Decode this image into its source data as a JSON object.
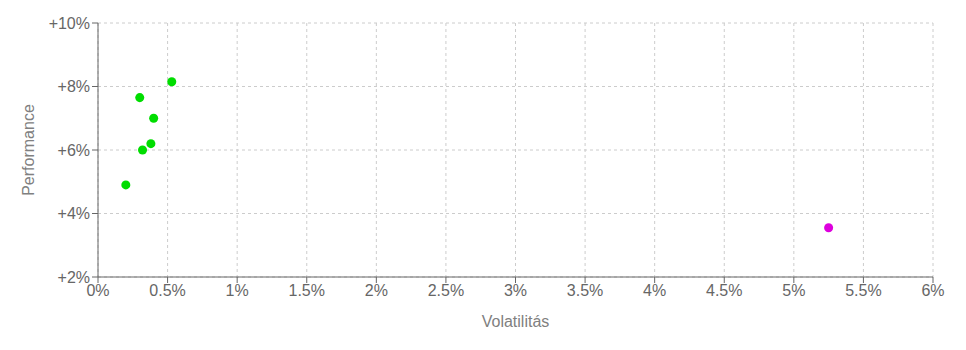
{
  "chart_data": {
    "type": "scatter",
    "xlabel": "Volatilitás",
    "ylabel": "Performance",
    "xlim": [
      0.0,
      0.06
    ],
    "ylim": [
      0.02,
      0.1
    ],
    "xticks": [
      {
        "value": 0.0,
        "label": "0%"
      },
      {
        "value": 0.005,
        "label": "0.5%"
      },
      {
        "value": 0.01,
        "label": "1%"
      },
      {
        "value": 0.015,
        "label": "1.5%"
      },
      {
        "value": 0.02,
        "label": "2%"
      },
      {
        "value": 0.025,
        "label": "2.5%"
      },
      {
        "value": 0.03,
        "label": "3%"
      },
      {
        "value": 0.035,
        "label": "3.5%"
      },
      {
        "value": 0.04,
        "label": "4%"
      },
      {
        "value": 0.045,
        "label": "4.5%"
      },
      {
        "value": 0.05,
        "label": "5%"
      },
      {
        "value": 0.055,
        "label": "5.5%"
      },
      {
        "value": 0.06,
        "label": "6%"
      }
    ],
    "yticks": [
      {
        "value": 0.02,
        "label": "+2%"
      },
      {
        "value": 0.04,
        "label": "+4%"
      },
      {
        "value": 0.06,
        "label": "+6%"
      },
      {
        "value": 0.08,
        "label": "+8%"
      },
      {
        "value": 0.1,
        "label": "+10%"
      }
    ],
    "grid": true,
    "series": [
      {
        "color": "#00dd00",
        "x": [
          0.002,
          0.0032,
          0.0038,
          0.004,
          0.003,
          0.0053
        ],
        "values": [
          0.049,
          0.06,
          0.062,
          0.07,
          0.0765,
          0.0815
        ]
      },
      {
        "color": "#dd00dd",
        "x": [
          0.0525
        ],
        "values": [
          0.0355
        ]
      }
    ]
  }
}
